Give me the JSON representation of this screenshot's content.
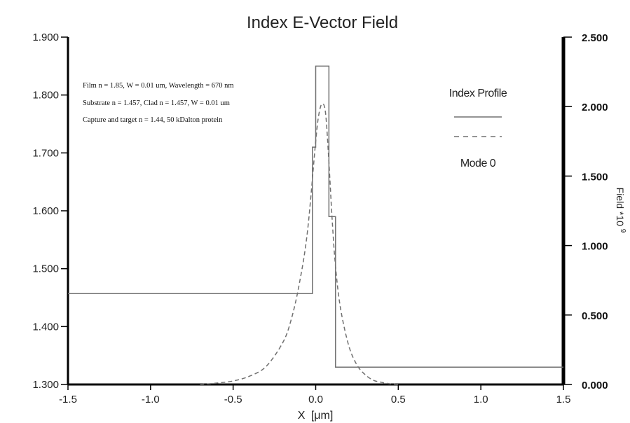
{
  "chart_data": {
    "type": "line",
    "title": "Index E-Vector Field",
    "xlabel_main": "X",
    "xlabel_unit": "[μm]",
    "ylabel_right_main": "Field *10",
    "ylabel_right_exp": "9",
    "xlim": [
      -1.5,
      1.5
    ],
    "ylim_left": [
      1.3,
      1.9
    ],
    "ylim_right": [
      0.0,
      2.5
    ],
    "x_ticks": [
      "-1.5",
      "-1.0",
      "-0.5",
      "0.0",
      "0.5",
      "1.0",
      "1.5"
    ],
    "x_tick_values": [
      -1.5,
      -1.0,
      -0.5,
      0.0,
      0.5,
      1.0,
      1.5
    ],
    "y_left_ticks": [
      "1.300",
      "1.400",
      "1.500",
      "1.600",
      "1.700",
      "1.800",
      "1.900"
    ],
    "y_left_tick_values": [
      1.3,
      1.4,
      1.5,
      1.6,
      1.7,
      1.8,
      1.9
    ],
    "y_right_ticks": [
      "0.000",
      "0.500",
      "1.000",
      "1.500",
      "2.000",
      "2.500"
    ],
    "y_right_tick_values": [
      0.0,
      0.5,
      1.0,
      1.5,
      2.0,
      2.5
    ],
    "annotations": [
      "Film n = 1.85,  W = 0.01 um, Wavelength = 670 nm",
      "Substrate n = 1.457,  Clad n = 1.457, W = 0.01 um",
      "Capture and target n = 1.44,  50 kDalton protein"
    ],
    "legend": [
      {
        "name": "Index Profile",
        "style": "solid"
      },
      {
        "name": "Mode 0",
        "style": "dashed"
      }
    ],
    "series": [
      {
        "name": "Index Profile",
        "axis": "left",
        "style": "solid",
        "x": [
          -1.5,
          -0.02,
          -0.02,
          0.0,
          0.0,
          0.08,
          0.08,
          0.12,
          0.12,
          1.5
        ],
        "y": [
          1.457,
          1.457,
          1.71,
          1.71,
          1.85,
          1.85,
          1.59,
          1.59,
          1.33,
          1.33
        ]
      },
      {
        "name": "Mode 0",
        "axis": "right",
        "style": "dashed",
        "x": [
          -0.7,
          -0.6,
          -0.5,
          -0.4,
          -0.3,
          -0.2,
          -0.15,
          -0.1,
          -0.05,
          0.0,
          0.02,
          0.04,
          0.06,
          0.08,
          0.1,
          0.12,
          0.15,
          0.2,
          0.25,
          0.3,
          0.35,
          0.4,
          0.45,
          0.5
        ],
        "y": [
          0.0,
          0.01,
          0.025,
          0.06,
          0.13,
          0.3,
          0.46,
          0.72,
          1.1,
          1.75,
          1.95,
          2.02,
          1.95,
          1.6,
          1.18,
          0.85,
          0.55,
          0.28,
          0.14,
          0.07,
          0.03,
          0.015,
          0.005,
          0.0
        ]
      }
    ],
    "grid": false,
    "legend_position": "top-right"
  },
  "colors": {
    "line": "#707070",
    "axis": "#000000",
    "text": "#222222"
  }
}
